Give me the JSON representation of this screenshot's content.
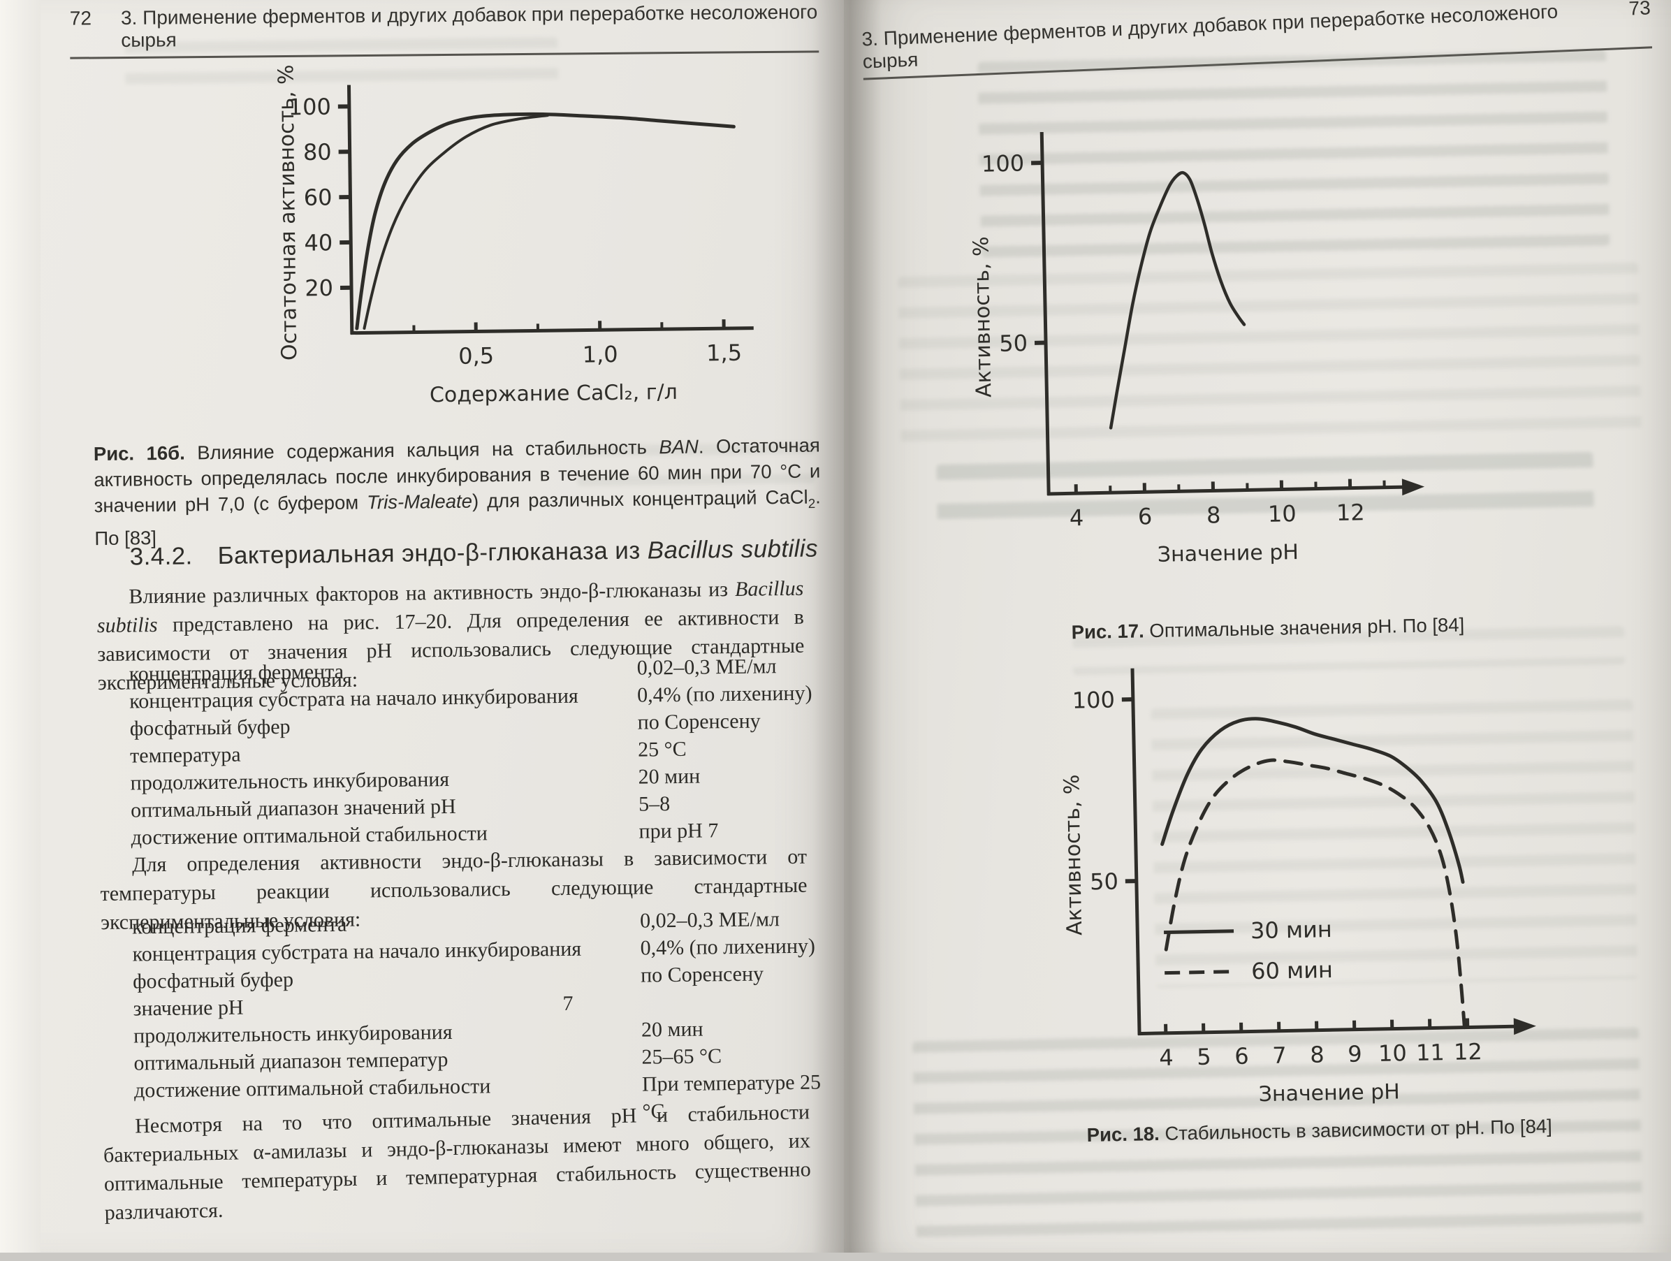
{
  "colors": {
    "paper": "#e9e7e2",
    "ink": "#2c2b27",
    "cover_edge_teal": "#6f9c93"
  },
  "left_page": {
    "page_number": "72",
    "running_header": "3. Применение ферментов и других добавок при переработке несоложеного сырья",
    "fig16b_caption": [
      {
        "t": "Рис. 16б.",
        "b": true
      },
      {
        "t": " Влияние содержания кальция на стабильность "
      },
      {
        "t": "BAN",
        "i": true
      },
      {
        "t": ". Остаточная активность определялась после инкубирования в течение 60 мин при 70 °C и значении pH 7,0 (с буфером "
      },
      {
        "t": "Tris-Maleate",
        "i": true
      },
      {
        "t": ") для различных концентраций CaCl"
      },
      {
        "t": "2",
        "sub": true
      },
      {
        "t": ". По [83]"
      }
    ],
    "section_number": "3.4.2.",
    "section_title": [
      {
        "t": "Бактериальная эндо-β-глюканаза из "
      },
      {
        "t": "Bacillus subtilis",
        "i": true
      }
    ],
    "para1": [
      {
        "t": "Влияние различных факторов на активность эндо-β-глюканазы из "
      },
      {
        "t": "Bacillus subtilis",
        "i": true
      },
      {
        "t": " представлено на рис. 17–20. Для определения ее активности в зависимости от значения pH использовались следующие стандартные экспериментальные условия:"
      }
    ],
    "conditions1": [
      {
        "label": "концентрация фермента",
        "value": "0,02–0,3 МЕ/мл"
      },
      {
        "label": "концентрация субстрата на начало инкубирования",
        "value": "0,4% (по лихенину)"
      },
      {
        "label": "фосфатный буфер",
        "value": "по Соренсену"
      },
      {
        "label": "температура",
        "value": "25 °C"
      },
      {
        "label": "продолжительность инкубирования",
        "value": "20 мин"
      },
      {
        "label": "оптимальный диапазон значений pH",
        "value": "5–8"
      },
      {
        "label": "достижение оптимальной стабильности",
        "value": "при pH 7"
      }
    ],
    "para2": "Для определения активности эндо-β-глюканазы в зависимости от температуры реакции использовались следующие стандартные экспериментальные условия:",
    "conditions2": [
      {
        "label": "концентрация фермента",
        "value": "0,02–0,3 МЕ/мл"
      },
      {
        "label": "концентрация субстрата на начало инкубирования",
        "value": "0,4% (по лихенину)"
      },
      {
        "label": "фосфатный буфер",
        "value": "по Соренсену"
      },
      {
        "label": "значение pH",
        "value": "7"
      },
      {
        "label": "продолжительность инкубирования",
        "value": "20 мин"
      },
      {
        "label": "оптимальный диапазон температур",
        "value": "25–65 °C"
      },
      {
        "label": "достижение оптимальной стабильности",
        "value": "При температуре 25 °C"
      }
    ],
    "para3": "Несмотря на то что оптимальные значения pH и стабильности бактериальных α-амилазы и эндо-β-глюканазы имеют много общего, их оптимальные температуры и температурная стабильность существенно различаются."
  },
  "right_page": {
    "page_number": "73",
    "running_header": "3. Применение ферментов и других добавок при переработке несоложеного сырья",
    "fig17_caption": [
      {
        "t": "Рис. 17.",
        "b": true
      },
      {
        "t": " Оптимальные значения pH. По [84]"
      }
    ],
    "fig18_caption": [
      {
        "t": "Рис. 18.",
        "b": true
      },
      {
        "t": " Стабильность в зависимости от pH. По [84]"
      }
    ]
  },
  "chart_data": [
    {
      "id": "fig16b",
      "type": "line",
      "title": "Рис. 16б. Влияние содержания кальция на стабильность BAN",
      "xlabel": "Содержание CaCl₂, г/л",
      "ylabel": "Остаточная активность, %",
      "xlim": [
        0,
        1.62
      ],
      "ylim": [
        0,
        107
      ],
      "grid": false,
      "legend_position": "none",
      "x_arrow": false,
      "margins": {
        "l": 150,
        "r": 35,
        "t": 28,
        "b": 130
      },
      "yticks": [
        {
          "v": 20,
          "label": "20"
        },
        {
          "v": 40,
          "label": "40"
        },
        {
          "v": 60,
          "label": "60"
        },
        {
          "v": 80,
          "label": "80"
        },
        {
          "v": 100,
          "label": "100"
        }
      ],
      "xticks": [
        {
          "v": 0.5,
          "label": "0,5"
        },
        {
          "v": 1.0,
          "label": "1,0"
        },
        {
          "v": 1.5,
          "label": "1,5"
        }
      ],
      "xminor": [
        0.25,
        0.75,
        1.25
      ],
      "series": [
        {
          "name": "",
          "dash": false,
          "width": 5,
          "points": [
            [
              0.02,
              2
            ],
            [
              0.04,
              18
            ],
            [
              0.07,
              38
            ],
            [
              0.1,
              53
            ],
            [
              0.14,
              66
            ],
            [
              0.19,
              76
            ],
            [
              0.25,
              83
            ],
            [
              0.32,
              88
            ],
            [
              0.4,
              92
            ],
            [
              0.5,
              94.5
            ],
            [
              0.62,
              95.5
            ],
            [
              0.78,
              95.5
            ],
            [
              0.95,
              94.5
            ],
            [
              1.1,
              93.5
            ],
            [
              1.25,
              92
            ],
            [
              1.4,
              90.5
            ],
            [
              1.55,
              89
            ]
          ]
        },
        {
          "name": "",
          "dash": false,
          "width": 4,
          "points": [
            [
              0.05,
              2
            ],
            [
              0.08,
              16
            ],
            [
              0.12,
              32
            ],
            [
              0.17,
              47
            ],
            [
              0.23,
              60
            ],
            [
              0.3,
              71
            ],
            [
              0.38,
              79
            ],
            [
              0.47,
              86
            ],
            [
              0.57,
              91
            ],
            [
              0.68,
              93.5
            ],
            [
              0.8,
              95
            ]
          ]
        }
      ]
    },
    {
      "id": "fig17",
      "type": "line",
      "title": "Рис. 17. Оптимальные значения pH",
      "xlabel": "Значение pH",
      "ylabel": "Активность, %",
      "xlim": [
        3.2,
        13.6
      ],
      "ylim": [
        8,
        107
      ],
      "grid": false,
      "legend_position": "none",
      "x_arrow": true,
      "margins": {
        "l": 125,
        "r": 65,
        "t": 30,
        "b": 160
      },
      "yticks": [
        {
          "v": 50,
          "label": "50"
        },
        {
          "v": 100,
          "label": "100"
        }
      ],
      "xticks": [
        {
          "v": 4,
          "label": "4"
        },
        {
          "v": 6,
          "label": "6"
        },
        {
          "v": 8,
          "label": "8"
        },
        {
          "v": 10,
          "label": "10"
        },
        {
          "v": 12,
          "label": "12"
        }
      ],
      "xminor": [
        5,
        7,
        9,
        11,
        13
      ],
      "series": [
        {
          "name": "активность",
          "dash": false,
          "width": 4.5,
          "points": [
            [
              5.05,
              26
            ],
            [
              5.25,
              36
            ],
            [
              5.5,
              48
            ],
            [
              5.75,
              60
            ],
            [
              6.0,
              70
            ],
            [
              6.3,
              80
            ],
            [
              6.6,
              87
            ],
            [
              6.9,
              93
            ],
            [
              7.1,
              95.5
            ],
            [
              7.3,
              96.5
            ],
            [
              7.5,
              94.5
            ],
            [
              7.7,
              89
            ],
            [
              7.9,
              82
            ],
            [
              8.1,
              74
            ],
            [
              8.35,
              66
            ],
            [
              8.6,
              60
            ],
            [
              8.85,
              56
            ],
            [
              9.0,
              54
            ]
          ]
        }
      ]
    },
    {
      "id": "fig18",
      "type": "line",
      "title": "Рис. 18. Стабильность в зависимости от pH",
      "xlabel": "Значение pH",
      "ylabel": "Активность, %",
      "xlim": [
        3.3,
        13.3
      ],
      "ylim": [
        8,
        107
      ],
      "grid": false,
      "legend_position": "inside-lower-left",
      "x_arrow": true,
      "margins": {
        "l": 125,
        "r": 55,
        "t": 25,
        "b": 160
      },
      "yticks": [
        {
          "v": 50,
          "label": "50"
        },
        {
          "v": 100,
          "label": "100"
        }
      ],
      "xticks": [
        {
          "v": 4,
          "label": "4"
        },
        {
          "v": 5,
          "label": "5"
        },
        {
          "v": 6,
          "label": "6"
        },
        {
          "v": 7,
          "label": "7"
        },
        {
          "v": 8,
          "label": "8"
        },
        {
          "v": 9,
          "label": "9"
        },
        {
          "v": 10,
          "label": "10"
        },
        {
          "v": 11,
          "label": "11"
        },
        {
          "v": 12,
          "label": "12"
        }
      ],
      "xminor": [],
      "legend": {
        "x": 0.07,
        "y": 0.72,
        "items": [
          {
            "label": "30 мин",
            "dash": false
          },
          {
            "label": "60 мин",
            "dash": true
          }
        ]
      },
      "series": [
        {
          "name": "30 мин",
          "dash": false,
          "width": 5,
          "points": [
            [
              4.0,
              60
            ],
            [
              4.3,
              69
            ],
            [
              4.7,
              79
            ],
            [
              5.1,
              86
            ],
            [
              5.6,
              91
            ],
            [
              6.1,
              93.5
            ],
            [
              6.6,
              94
            ],
            [
              7.1,
              93
            ],
            [
              7.6,
              91.5
            ],
            [
              8.1,
              89.5
            ],
            [
              8.6,
              88
            ],
            [
              9.1,
              86.5
            ],
            [
              9.6,
              85
            ],
            [
              10.1,
              83
            ],
            [
              10.5,
              80
            ],
            [
              10.9,
              76
            ],
            [
              11.3,
              70
            ],
            [
              11.6,
              62
            ],
            [
              11.85,
              53
            ],
            [
              11.95,
              48
            ]
          ]
        },
        {
          "name": "60 мин",
          "dash": true,
          "width": 5,
          "points": [
            [
              4.05,
              31
            ],
            [
              4.3,
              44
            ],
            [
              4.6,
              56
            ],
            [
              5.0,
              66
            ],
            [
              5.4,
              73
            ],
            [
              5.9,
              78
            ],
            [
              6.4,
              81
            ],
            [
              6.9,
              82.5
            ],
            [
              7.4,
              82
            ],
            [
              7.9,
              81
            ],
            [
              8.4,
              80
            ],
            [
              8.9,
              78.5
            ],
            [
              9.4,
              77
            ],
            [
              9.9,
              75
            ],
            [
              10.3,
              72.5
            ],
            [
              10.7,
              69
            ],
            [
              11.1,
              63
            ],
            [
              11.4,
              55
            ],
            [
              11.6,
              45
            ],
            [
              11.75,
              33
            ],
            [
              11.85,
              20
            ],
            [
              11.92,
              8
            ]
          ]
        }
      ]
    }
  ]
}
